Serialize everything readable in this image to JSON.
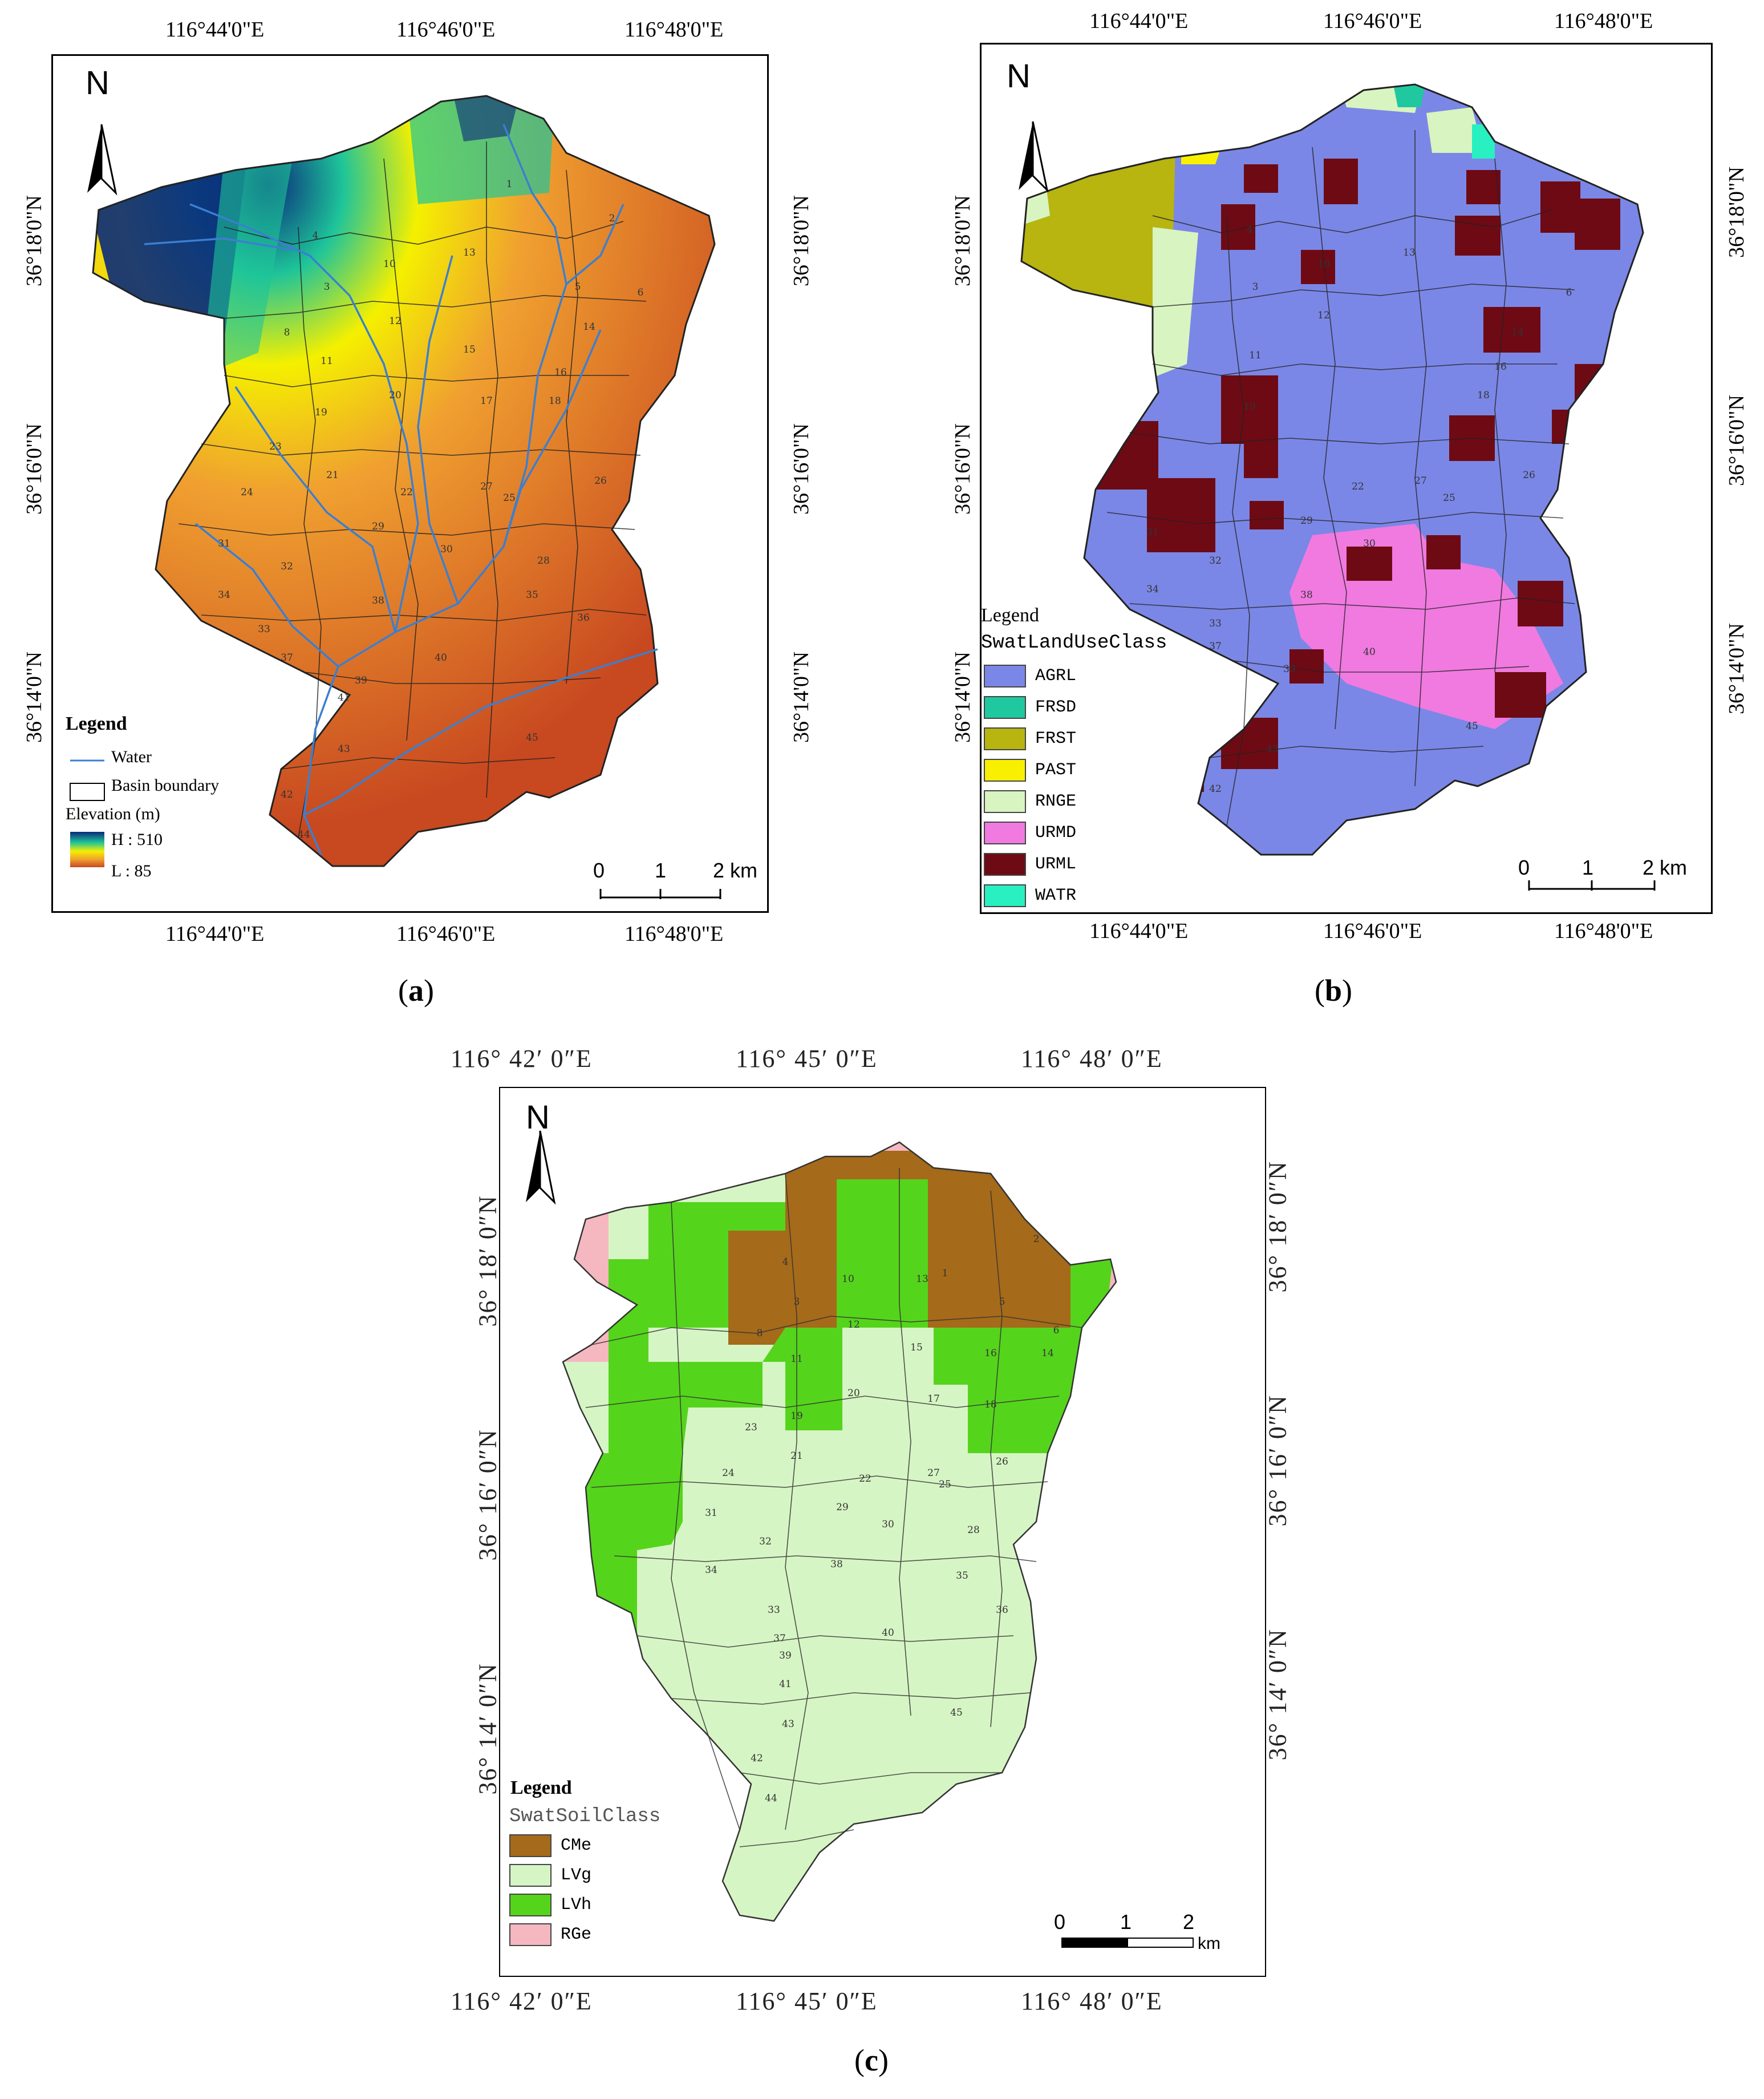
{
  "panel_a": {
    "caption": "a",
    "top_ticks": [
      "116°44'0\"E",
      "116°46'0\"E",
      "116°48'0\"E"
    ],
    "bottom_ticks": [
      "116°44'0\"E",
      "116°46'0\"E",
      "116°48'0\"E"
    ],
    "left_ticks": [
      "36°18'0\"N",
      "36°16'0\"N",
      "36°14'0\"N"
    ],
    "right_ticks": [
      "36°18'0\"N",
      "36°16'0\"N",
      "36°14'0\"N"
    ],
    "north": "N",
    "legend": {
      "title": "Legend",
      "water": "Water",
      "basin_boundary": "Basin boundary",
      "elevation_title": "Elevation (m)",
      "high": "H : 510",
      "low": "L : 85",
      "colors": {
        "high": "#0a2a7a",
        "mid_high": "#1ec49a",
        "mid": "#f4f000",
        "mid_low": "#f0a030",
        "low": "#c84820"
      },
      "water_color": "#3b7fd0"
    },
    "scale": {
      "labels": [
        "0",
        "1",
        "2 km"
      ]
    }
  },
  "panel_b": {
    "caption": "b",
    "top_ticks": [
      "116°44'0\"E",
      "116°46'0\"E",
      "116°48'0\"E"
    ],
    "bottom_ticks": [
      "116°44'0\"E",
      "116°46'0\"E",
      "116°48'0\"E"
    ],
    "left_ticks": [
      "36°18'0\"N",
      "36°16'0\"N",
      "36°14'0\"N"
    ],
    "right_ticks": [
      "36°18'0\"N",
      "36°16'0\"N",
      "36°14'0\"N"
    ],
    "north": "N",
    "legend": {
      "title": "Legend",
      "subtitle": "SwatLandUseClass",
      "items": [
        {
          "label": "AGRL",
          "color": "#7b87e6"
        },
        {
          "label": "FRSD",
          "color": "#20c8a0"
        },
        {
          "label": "FRST",
          "color": "#b8b410"
        },
        {
          "label": "PAST",
          "color": "#f8f000"
        },
        {
          "label": "RNGE",
          "color": "#d8f4c0"
        },
        {
          "label": "URMD",
          "color": "#f07ae0"
        },
        {
          "label": "URML",
          "color": "#6e0a14"
        },
        {
          "label": "WATR",
          "color": "#28f0c0"
        }
      ]
    },
    "scale": {
      "labels": [
        "0",
        "1",
        "2 km"
      ]
    }
  },
  "panel_c": {
    "caption": "c",
    "top_ticks": [
      "116°  42′ 0″E",
      "116°  45′ 0″E",
      "116°  48′ 0″E"
    ],
    "bottom_ticks": [
      "116°  42′ 0″E",
      "116°  45′ 0″E",
      "116°  48′ 0″E"
    ],
    "left_ticks": [
      "36°  18′ 0″N",
      "36°  16′ 0″N",
      "36°  14′ 0″N"
    ],
    "right_ticks": [
      "36°  18′ 0″N",
      "36°  16′ 0″N",
      "36°  14′ 0″N"
    ],
    "north": "N",
    "legend": {
      "title": "Legend",
      "subtitle": "SwatSoilClass",
      "items": [
        {
          "label": "CMe",
          "color": "#a56a1a"
        },
        {
          "label": "LVg",
          "color": "#d6f5c4"
        },
        {
          "label": "LVh",
          "color": "#55d41c"
        },
        {
          "label": "RGe",
          "color": "#f5b8c0"
        }
      ]
    },
    "scale": {
      "labels": [
        "0",
        "1",
        "2",
        "km"
      ]
    }
  },
  "subbasins": [
    "1",
    "2",
    "3",
    "4",
    "5",
    "6",
    "8",
    "10",
    "11",
    "12",
    "13",
    "14",
    "15",
    "16",
    "17",
    "18",
    "19",
    "20",
    "21",
    "22",
    "23",
    "24",
    "25",
    "26",
    "27",
    "28",
    "29",
    "30",
    "31",
    "32",
    "33",
    "34",
    "35",
    "36",
    "37",
    "38",
    "39",
    "40",
    "41",
    "42",
    "43",
    "44",
    "45"
  ]
}
